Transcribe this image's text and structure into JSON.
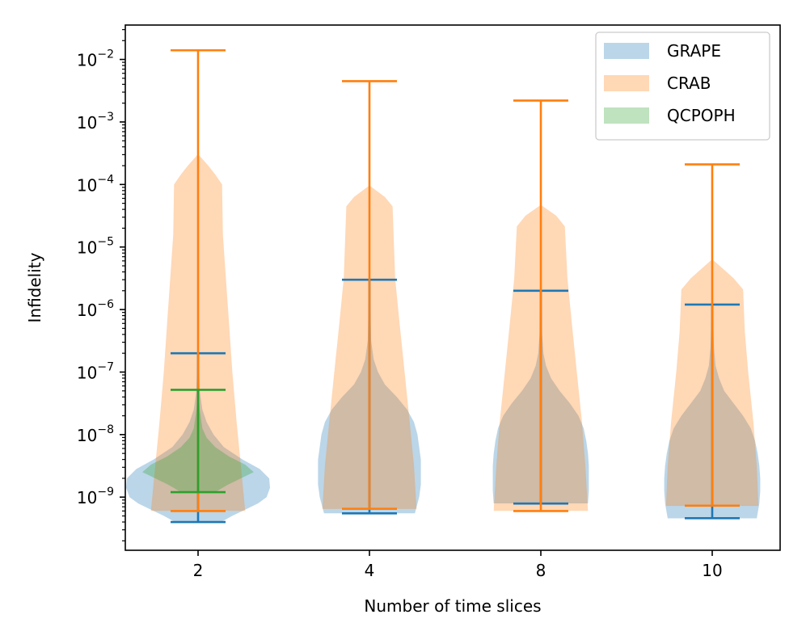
{
  "chart_data": {
    "type": "violin",
    "title": "",
    "xlabel": "Number of time slices",
    "ylabel": "Infidelity",
    "yscale": "log",
    "ylim_log10": [
      -9.85,
      -1.45
    ],
    "yticks": [
      {
        "exp": -2,
        "base": "10",
        "sup": "−2"
      },
      {
        "exp": -3,
        "base": "10",
        "sup": "−3"
      },
      {
        "exp": -4,
        "base": "10",
        "sup": "−4"
      },
      {
        "exp": -5,
        "base": "10",
        "sup": "−5"
      },
      {
        "exp": -6,
        "base": "10",
        "sup": "−6"
      },
      {
        "exp": -7,
        "base": "10",
        "sup": "−7"
      },
      {
        "exp": -8,
        "base": "10",
        "sup": "−8"
      },
      {
        "exp": -9,
        "base": "10",
        "sup": "−9"
      }
    ],
    "categories": [
      "2",
      "4",
      "8",
      "10"
    ],
    "legend": {
      "location": "upper right",
      "entries": [
        {
          "label": "GRAPE",
          "color": "#1f77b4"
        },
        {
          "label": "CRAB",
          "color": "#ff7f0e"
        },
        {
          "label": "QCPOPH",
          "color": "#2ca02c"
        }
      ]
    },
    "series": [
      {
        "name": "GRAPE",
        "color": "#1f77b4",
        "violins": [
          {
            "category": "2",
            "min": 4e-10,
            "max": 2e-07,
            "profile": [
              [
                -9.39,
                0.28
              ],
              [
                -9.3,
                0.4
              ],
              [
                -9.2,
                0.55
              ],
              [
                -9.1,
                0.7
              ],
              [
                -9.0,
                0.8
              ],
              [
                -8.85,
                0.84
              ],
              [
                -8.7,
                0.83
              ],
              [
                -8.55,
                0.72
              ],
              [
                -8.4,
                0.52
              ],
              [
                -8.2,
                0.3
              ],
              [
                -8.0,
                0.18
              ],
              [
                -7.8,
                0.1
              ],
              [
                -7.6,
                0.05
              ],
              [
                -7.3,
                0.02
              ],
              [
                -6.7,
                0.005
              ]
            ]
          },
          {
            "category": "4",
            "min": 5.5e-10,
            "max": 3e-06,
            "profile": [
              [
                -9.26,
                0.53
              ],
              [
                -9.0,
                0.58
              ],
              [
                -8.8,
                0.6
              ],
              [
                -8.6,
                0.6
              ],
              [
                -8.4,
                0.6
              ],
              [
                -8.2,
                0.58
              ],
              [
                -8.0,
                0.56
              ],
              [
                -7.8,
                0.52
              ],
              [
                -7.6,
                0.44
              ],
              [
                -7.4,
                0.32
              ],
              [
                -7.2,
                0.18
              ],
              [
                -7.0,
                0.1
              ],
              [
                -6.8,
                0.05
              ],
              [
                -6.5,
                0.02
              ],
              [
                -5.52,
                0.005
              ]
            ]
          },
          {
            "category": "8",
            "min": 7.9e-10,
            "max": 2e-06,
            "profile": [
              [
                -9.1,
                0.55
              ],
              [
                -8.9,
                0.56
              ],
              [
                -8.7,
                0.56
              ],
              [
                -8.5,
                0.56
              ],
              [
                -8.3,
                0.55
              ],
              [
                -8.1,
                0.53
              ],
              [
                -7.9,
                0.5
              ],
              [
                -7.7,
                0.44
              ],
              [
                -7.5,
                0.34
              ],
              [
                -7.3,
                0.22
              ],
              [
                -7.1,
                0.12
              ],
              [
                -6.9,
                0.06
              ],
              [
                -6.7,
                0.03
              ],
              [
                -6.4,
                0.015
              ],
              [
                -5.7,
                0.005
              ]
            ]
          },
          {
            "category": "10",
            "min": 4.6e-10,
            "max": 1.2e-06,
            "profile": [
              [
                -9.34,
                0.52
              ],
              [
                -9.1,
                0.55
              ],
              [
                -8.9,
                0.56
              ],
              [
                -8.7,
                0.56
              ],
              [
                -8.5,
                0.55
              ],
              [
                -8.3,
                0.53
              ],
              [
                -8.1,
                0.5
              ],
              [
                -7.9,
                0.45
              ],
              [
                -7.7,
                0.36
              ],
              [
                -7.5,
                0.25
              ],
              [
                -7.3,
                0.14
              ],
              [
                -7.1,
                0.08
              ],
              [
                -6.9,
                0.04
              ],
              [
                -6.6,
                0.02
              ],
              [
                -5.92,
                0.005
              ]
            ]
          }
        ]
      },
      {
        "name": "CRAB",
        "color": "#ff7f0e",
        "violins": [
          {
            "category": "2",
            "min": 6e-10,
            "max": 0.014,
            "profile": [
              [
                -9.22,
                0.55
              ],
              [
                -8.5,
                0.5
              ],
              [
                -7.8,
                0.45
              ],
              [
                -7.0,
                0.4
              ],
              [
                -6.2,
                0.36
              ],
              [
                -5.4,
                0.32
              ],
              [
                -4.8,
                0.29
              ],
              [
                -4.0,
                0.28
              ],
              [
                -3.84,
                0.2
              ],
              [
                -3.7,
                0.12
              ],
              [
                -3.52,
                0.005
              ],
              [
                -2.9,
                0.003
              ],
              [
                -1.85,
                0.003
              ]
            ]
          },
          {
            "category": "4",
            "min": 6.5e-10,
            "max": 0.0045,
            "profile": [
              [
                -9.19,
                0.55
              ],
              [
                -8.5,
                0.52
              ],
              [
                -7.8,
                0.47
              ],
              [
                -7.0,
                0.41
              ],
              [
                -6.2,
                0.35
              ],
              [
                -5.5,
                0.3
              ],
              [
                -4.35,
                0.27
              ],
              [
                -4.2,
                0.18
              ],
              [
                -4.02,
                0.005
              ],
              [
                -3.2,
                0.003
              ],
              [
                -2.35,
                0.003
              ]
            ]
          },
          {
            "category": "8",
            "min": 6e-10,
            "max": 0.0022,
            "profile": [
              [
                -9.22,
                0.55
              ],
              [
                -8.5,
                0.52
              ],
              [
                -7.8,
                0.48
              ],
              [
                -7.0,
                0.42
              ],
              [
                -6.2,
                0.36
              ],
              [
                -5.5,
                0.31
              ],
              [
                -4.67,
                0.28
              ],
              [
                -4.5,
                0.18
              ],
              [
                -4.33,
                0.005
              ],
              [
                -3.5,
                0.003
              ],
              [
                -2.66,
                0.003
              ]
            ]
          },
          {
            "category": "10",
            "min": 7.3e-10,
            "max": 0.00021,
            "profile": [
              [
                -9.14,
                0.54
              ],
              [
                -8.5,
                0.52
              ],
              [
                -7.8,
                0.48
              ],
              [
                -7.0,
                0.42
              ],
              [
                -6.35,
                0.38
              ],
              [
                -5.68,
                0.36
              ],
              [
                -5.5,
                0.25
              ],
              [
                -5.2,
                0.005
              ],
              [
                -4.5,
                0.003
              ],
              [
                -3.68,
                0.003
              ]
            ]
          }
        ]
      },
      {
        "name": "QCPOPH",
        "color": "#2ca02c",
        "violins": [
          {
            "category": "2",
            "min": 1.2e-09,
            "max": 5.2e-08,
            "profile": [
              [
                -8.92,
                0.2
              ],
              [
                -8.8,
                0.35
              ],
              [
                -8.7,
                0.5
              ],
              [
                -8.6,
                0.65
              ],
              [
                -8.48,
                0.55
              ],
              [
                -8.35,
                0.36
              ],
              [
                -8.2,
                0.2
              ],
              [
                -8.05,
                0.1
              ],
              [
                -7.9,
                0.05
              ],
              [
                -7.6,
                0.02
              ],
              [
                -7.28,
                0.005
              ]
            ]
          }
        ]
      }
    ]
  }
}
